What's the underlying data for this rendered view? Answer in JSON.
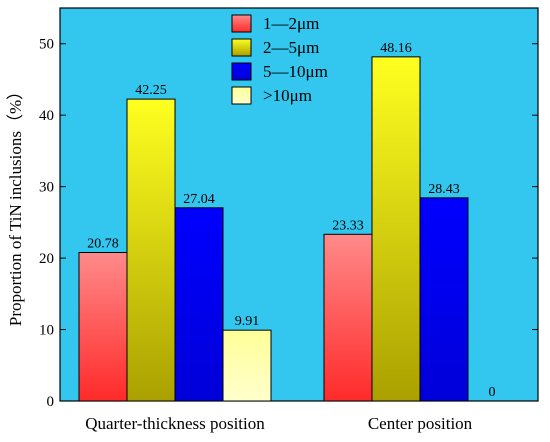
{
  "chart_data": {
    "type": "bar",
    "categories": [
      "Quarter-thickness position",
      "Center position"
    ],
    "series": [
      {
        "name": "1—2μm",
        "values": [
          20.78,
          23.33
        ],
        "colors": [
          "#ff2a2a",
          "#ff8a8a"
        ]
      },
      {
        "name": "2—5μm",
        "values": [
          42.25,
          48.16
        ],
        "colors": [
          "#aaa000",
          "#ffff20"
        ]
      },
      {
        "name": "5—10μm",
        "values": [
          27.04,
          28.43
        ],
        "colors": [
          "#0000d8",
          "#0000ff"
        ]
      },
      {
        "name": ">10μm",
        "values": [
          9.91,
          0
        ],
        "colors": [
          "#ffffcc",
          "#ffff99"
        ]
      }
    ],
    "data_labels": [
      [
        "20.78",
        "42.25",
        "27.04",
        "9.91"
      ],
      [
        "23.33",
        "48.16",
        "28.43",
        "0"
      ]
    ],
    "title": "",
    "xlabel": "",
    "ylabel": "Proportion of TiN inclusions（%）",
    "ylim": [
      0,
      55
    ],
    "yticks": [
      "0",
      "10",
      "20",
      "30",
      "40",
      "50"
    ],
    "background": "#33c6ee",
    "legend_position": "top-center",
    "grid": false
  }
}
